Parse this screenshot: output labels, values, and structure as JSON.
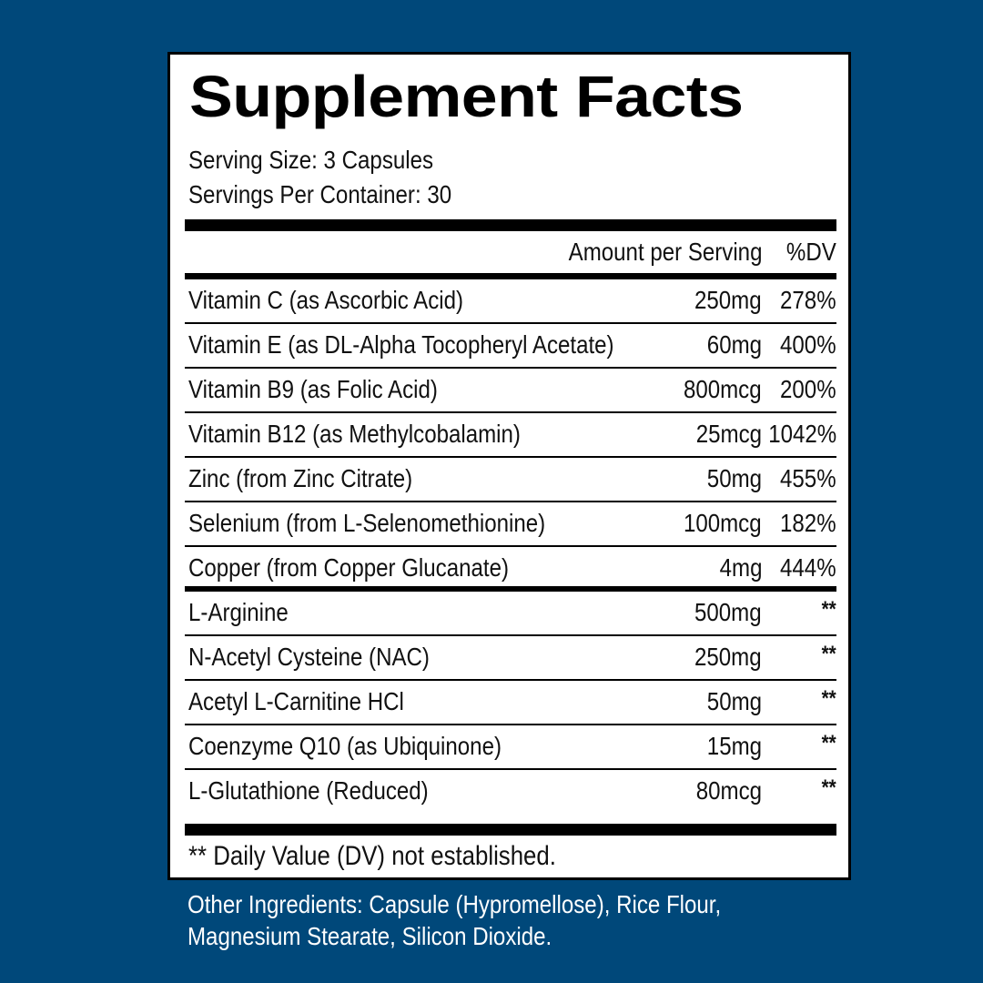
{
  "panel": {
    "title": "Supplement Facts",
    "serving_size": "Serving Size: 3 Capsules",
    "servings_per_container": "Servings Per Container: 30",
    "header": {
      "amount": "Amount per Serving",
      "dv": "%DV"
    },
    "rows": [
      {
        "name": "Vitamin C (as Ascorbic Acid)",
        "amount": "250mg",
        "dv": "278%"
      },
      {
        "name": "Vitamin E (as DL-Alpha Tocopheryl Acetate)",
        "amount": "60mg",
        "dv": "400%"
      },
      {
        "name": "Vitamin B9 (as Folic Acid)",
        "amount": "800mcg",
        "dv": "200%"
      },
      {
        "name": "Vitamin B12 (as Methylcobalamin)",
        "amount": "25mcg",
        "dv": "1042%"
      },
      {
        "name": "Zinc (from Zinc Citrate)",
        "amount": "50mg",
        "dv": "455%"
      },
      {
        "name": "Selenium (from L-Selenomethionine)",
        "amount": "100mcg",
        "dv": "182%"
      },
      {
        "name": "Copper (from Copper Glucanate)",
        "amount": "4mg",
        "dv": "444%"
      },
      {
        "name": "L-Arginine",
        "amount": "500mg",
        "dv": "**"
      },
      {
        "name": "N-Acetyl Cysteine (NAC)",
        "amount": "250mg",
        "dv": "**"
      },
      {
        "name": "Acetyl L-Carnitine HCl",
        "amount": "50mg",
        "dv": "**"
      },
      {
        "name": "Coenzyme Q10 (as Ubiquinone)",
        "amount": "15mg",
        "dv": "**"
      },
      {
        "name": "L-Glutathione (Reduced)",
        "amount": "80mcg",
        "dv": "**"
      }
    ],
    "footnote": "** Daily Value (DV) not established."
  },
  "other_ingredients": {
    "line1": "Other Ingredients: Capsule (Hypromellose), Rice Flour,",
    "line2": "Magnesium Stearate, Silicon Dioxide."
  },
  "colors": {
    "background": "#00487a",
    "panel": "#ffffff",
    "rule": "#000000",
    "text_on_background": "#ffffff"
  }
}
